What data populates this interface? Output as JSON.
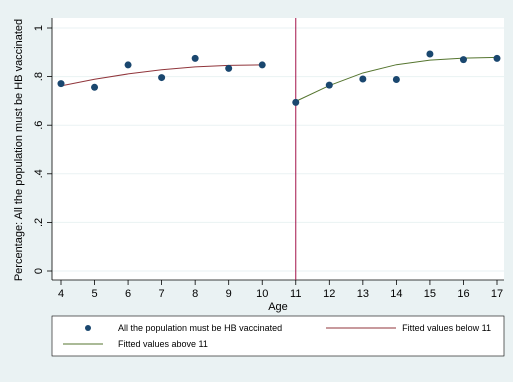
{
  "chart_data": {
    "type": "scatter",
    "xlabel": "Age",
    "ylabel": "Percentage: All the population must be HB vaccinated",
    "xlim": [
      4,
      17
    ],
    "ylim": [
      0,
      1
    ],
    "x_ticks": [
      4,
      5,
      6,
      7,
      8,
      9,
      10,
      11,
      12,
      13,
      14,
      15,
      16,
      17
    ],
    "y_ticks": [
      {
        "value": 0,
        "label": "0"
      },
      {
        "value": 0.2,
        "label": ".2"
      },
      {
        "value": 0.4,
        "label": ".4"
      },
      {
        "value": 0.6,
        "label": ".6"
      },
      {
        "value": 0.8,
        "label": ".8"
      },
      {
        "value": 1,
        "label": "1"
      }
    ],
    "grid": true,
    "cutoff_line": {
      "x": 11,
      "color": "#a3124a"
    },
    "series": [
      {
        "name": "All the population must be HB vaccinated",
        "kind": "scatter",
        "color": "#1a476f",
        "x": [
          4,
          5,
          6,
          7,
          8,
          9,
          10,
          11,
          12,
          13,
          14,
          15,
          16,
          17
        ],
        "y": [
          0.771,
          0.756,
          0.848,
          0.796,
          0.875,
          0.834,
          0.848,
          0.694,
          0.765,
          0.79,
          0.788,
          0.893,
          0.87,
          0.875
        ]
      },
      {
        "name": "Fitted values below 11",
        "kind": "line",
        "color": "#90353b",
        "x": [
          4,
          5,
          6,
          7,
          8,
          9,
          10
        ],
        "y": [
          0.762,
          0.789,
          0.811,
          0.828,
          0.84,
          0.846,
          0.848
        ]
      },
      {
        "name": "Fitted values above 11",
        "kind": "line",
        "color": "#55752f",
        "x": [
          11,
          12,
          13,
          14,
          15,
          16,
          17
        ],
        "y": [
          0.698,
          0.763,
          0.815,
          0.849,
          0.868,
          0.876,
          0.879
        ]
      }
    ],
    "legend": {
      "position": "bottom",
      "entries": [
        {
          "label": "All the population must be HB vaccinated",
          "marker": "dot",
          "color": "#1a476f"
        },
        {
          "label": "Fitted values below 11",
          "marker": "line",
          "color": "#90353b"
        },
        {
          "label": "Fitted values above 11",
          "marker": "line",
          "color": "#55752f"
        }
      ]
    },
    "colors": {
      "background": "#eaf2f3",
      "plot_background": "#ffffff",
      "grid": "#eaf2f3"
    }
  }
}
